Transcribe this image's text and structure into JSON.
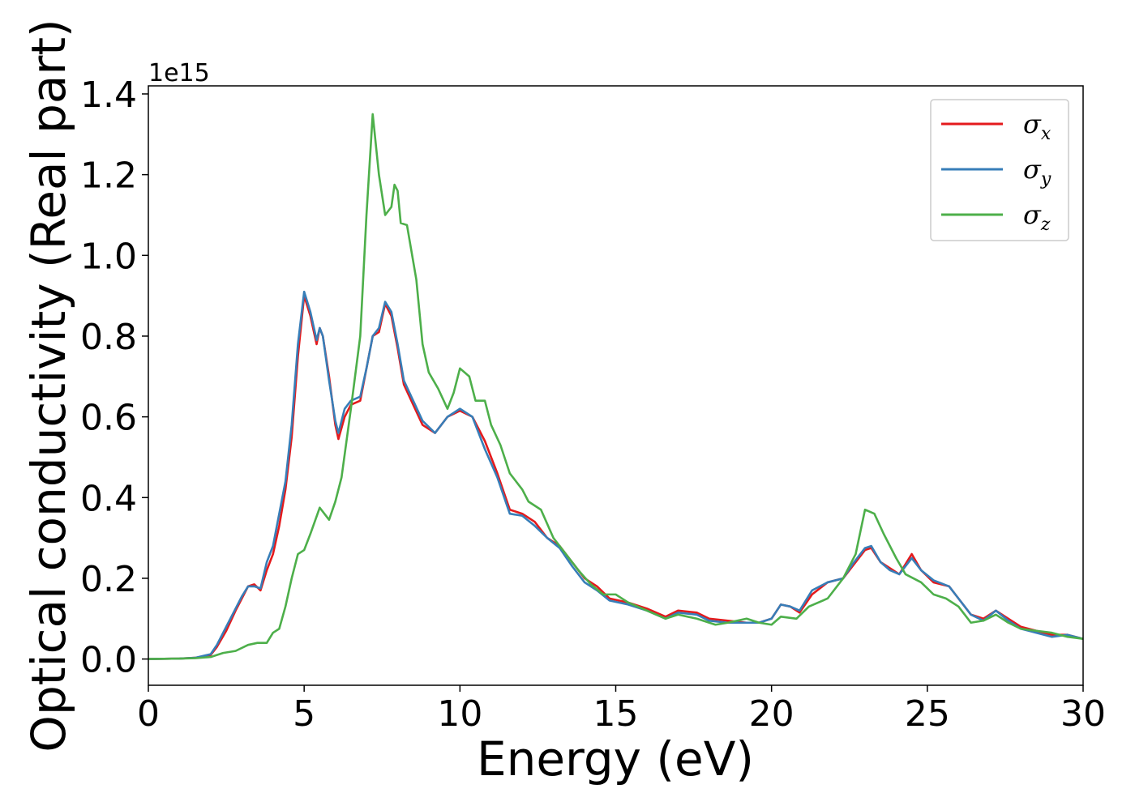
{
  "chart_data": {
    "type": "line",
    "xlabel": "Energy (eV)",
    "ylabel": "Optical conductivity (Real part)",
    "y_offset_label": "1e15",
    "y_scale": 1000000000000000.0,
    "xlim": [
      0,
      30
    ],
    "ylim": [
      -0.065,
      1.42
    ],
    "xticks": [
      0,
      5,
      10,
      15,
      20,
      25,
      30
    ],
    "xtick_labels": [
      "0",
      "5",
      "10",
      "15",
      "20",
      "25",
      "30"
    ],
    "yticks": [
      0.0,
      0.2,
      0.4,
      0.6,
      0.8,
      1.0,
      1.2,
      1.4
    ],
    "ytick_labels": [
      "0.0",
      "0.2",
      "0.4",
      "0.6",
      "0.8",
      "1.0",
      "1.2",
      "1.4"
    ],
    "grid": false,
    "legend_position": "top-right",
    "series": [
      {
        "name": "σ",
        "subscript": "x",
        "color": "#e41a1c",
        "points": [
          [
            0,
            0
          ],
          [
            1,
            0.001
          ],
          [
            1.5,
            0.003
          ],
          [
            2,
            0.01
          ],
          [
            2.2,
            0.03
          ],
          [
            2.5,
            0.07
          ],
          [
            2.8,
            0.12
          ],
          [
            3,
            0.15
          ],
          [
            3.2,
            0.18
          ],
          [
            3.4,
            0.185
          ],
          [
            3.6,
            0.17
          ],
          [
            3.8,
            0.22
          ],
          [
            4,
            0.26
          ],
          [
            4.2,
            0.33
          ],
          [
            4.4,
            0.42
          ],
          [
            4.6,
            0.55
          ],
          [
            4.8,
            0.75
          ],
          [
            5,
            0.9
          ],
          [
            5.2,
            0.85
          ],
          [
            5.4,
            0.78
          ],
          [
            5.5,
            0.82
          ],
          [
            5.6,
            0.8
          ],
          [
            5.8,
            0.7
          ],
          [
            6,
            0.58
          ],
          [
            6.1,
            0.545
          ],
          [
            6.3,
            0.6
          ],
          [
            6.5,
            0.63
          ],
          [
            6.8,
            0.64
          ],
          [
            7,
            0.72
          ],
          [
            7.2,
            0.8
          ],
          [
            7.4,
            0.81
          ],
          [
            7.6,
            0.88
          ],
          [
            7.8,
            0.85
          ],
          [
            8,
            0.77
          ],
          [
            8.2,
            0.68
          ],
          [
            8.5,
            0.63
          ],
          [
            8.8,
            0.58
          ],
          [
            9.2,
            0.56
          ],
          [
            9.6,
            0.6
          ],
          [
            10,
            0.615
          ],
          [
            10.4,
            0.6
          ],
          [
            10.8,
            0.54
          ],
          [
            11.2,
            0.46
          ],
          [
            11.6,
            0.37
          ],
          [
            12,
            0.36
          ],
          [
            12.4,
            0.34
          ],
          [
            12.8,
            0.3
          ],
          [
            13.2,
            0.28
          ],
          [
            13.6,
            0.24
          ],
          [
            14,
            0.2
          ],
          [
            14.4,
            0.18
          ],
          [
            14.8,
            0.15
          ],
          [
            15.4,
            0.14
          ],
          [
            16,
            0.125
          ],
          [
            16.6,
            0.105
          ],
          [
            17,
            0.12
          ],
          [
            17.6,
            0.115
          ],
          [
            18,
            0.1
          ],
          [
            18.6,
            0.095
          ],
          [
            19.2,
            0.09
          ],
          [
            19.6,
            0.09
          ],
          [
            20,
            0.1
          ],
          [
            20.3,
            0.135
          ],
          [
            20.6,
            0.13
          ],
          [
            20.9,
            0.115
          ],
          [
            21.3,
            0.16
          ],
          [
            21.8,
            0.19
          ],
          [
            22.3,
            0.2
          ],
          [
            22.6,
            0.23
          ],
          [
            23,
            0.27
          ],
          [
            23.2,
            0.275
          ],
          [
            23.5,
            0.24
          ],
          [
            23.8,
            0.225
          ],
          [
            24.1,
            0.21
          ],
          [
            24.5,
            0.26
          ],
          [
            24.8,
            0.22
          ],
          [
            25.2,
            0.19
          ],
          [
            25.7,
            0.18
          ],
          [
            26,
            0.15
          ],
          [
            26.4,
            0.11
          ],
          [
            26.8,
            0.1
          ],
          [
            27.2,
            0.12
          ],
          [
            27.6,
            0.1
          ],
          [
            28,
            0.08
          ],
          [
            28.5,
            0.07
          ],
          [
            29,
            0.06
          ],
          [
            29.5,
            0.06
          ],
          [
            30,
            0.05
          ]
        ]
      },
      {
        "name": "σ",
        "subscript": "y",
        "color": "#377eb8",
        "points": [
          [
            0,
            0
          ],
          [
            1,
            0.001
          ],
          [
            1.5,
            0.003
          ],
          [
            2,
            0.012
          ],
          [
            2.2,
            0.035
          ],
          [
            2.5,
            0.08
          ],
          [
            2.8,
            0.125
          ],
          [
            3,
            0.155
          ],
          [
            3.2,
            0.18
          ],
          [
            3.4,
            0.18
          ],
          [
            3.6,
            0.175
          ],
          [
            3.8,
            0.24
          ],
          [
            4,
            0.28
          ],
          [
            4.2,
            0.36
          ],
          [
            4.4,
            0.44
          ],
          [
            4.6,
            0.58
          ],
          [
            4.8,
            0.78
          ],
          [
            5,
            0.91
          ],
          [
            5.2,
            0.86
          ],
          [
            5.4,
            0.79
          ],
          [
            5.5,
            0.82
          ],
          [
            5.6,
            0.8
          ],
          [
            5.8,
            0.69
          ],
          [
            6,
            0.59
          ],
          [
            6.1,
            0.56
          ],
          [
            6.3,
            0.62
          ],
          [
            6.5,
            0.64
          ],
          [
            6.8,
            0.65
          ],
          [
            7,
            0.72
          ],
          [
            7.2,
            0.8
          ],
          [
            7.4,
            0.82
          ],
          [
            7.6,
            0.885
          ],
          [
            7.8,
            0.86
          ],
          [
            8,
            0.78
          ],
          [
            8.2,
            0.69
          ],
          [
            8.5,
            0.64
          ],
          [
            8.8,
            0.59
          ],
          [
            9.2,
            0.56
          ],
          [
            9.6,
            0.6
          ],
          [
            10,
            0.62
          ],
          [
            10.4,
            0.6
          ],
          [
            10.8,
            0.52
          ],
          [
            11.2,
            0.45
          ],
          [
            11.6,
            0.36
          ],
          [
            12,
            0.355
          ],
          [
            12.4,
            0.33
          ],
          [
            12.8,
            0.3
          ],
          [
            13.2,
            0.275
          ],
          [
            13.6,
            0.23
          ],
          [
            14,
            0.19
          ],
          [
            14.4,
            0.17
          ],
          [
            14.8,
            0.145
          ],
          [
            15.4,
            0.135
          ],
          [
            16,
            0.12
          ],
          [
            16.6,
            0.1
          ],
          [
            17,
            0.115
          ],
          [
            17.6,
            0.11
          ],
          [
            18,
            0.095
          ],
          [
            18.6,
            0.09
          ],
          [
            19.2,
            0.09
          ],
          [
            19.6,
            0.09
          ],
          [
            20,
            0.1
          ],
          [
            20.3,
            0.135
          ],
          [
            20.6,
            0.13
          ],
          [
            20.9,
            0.12
          ],
          [
            21.3,
            0.17
          ],
          [
            21.8,
            0.19
          ],
          [
            22.3,
            0.2
          ],
          [
            22.6,
            0.235
          ],
          [
            23,
            0.275
          ],
          [
            23.2,
            0.28
          ],
          [
            23.5,
            0.24
          ],
          [
            23.8,
            0.22
          ],
          [
            24.1,
            0.21
          ],
          [
            24.5,
            0.25
          ],
          [
            24.8,
            0.22
          ],
          [
            25.2,
            0.195
          ],
          [
            25.7,
            0.18
          ],
          [
            26,
            0.15
          ],
          [
            26.4,
            0.11
          ],
          [
            26.8,
            0.095
          ],
          [
            27.2,
            0.12
          ],
          [
            27.6,
            0.095
          ],
          [
            28,
            0.075
          ],
          [
            28.5,
            0.065
          ],
          [
            29,
            0.055
          ],
          [
            29.5,
            0.06
          ],
          [
            30,
            0.05
          ]
        ]
      },
      {
        "name": "σ",
        "subscript": "z",
        "color": "#4daf4a",
        "points": [
          [
            0,
            0
          ],
          [
            1,
            0.001
          ],
          [
            1.5,
            0.002
          ],
          [
            2,
            0.005
          ],
          [
            2.4,
            0.015
          ],
          [
            2.8,
            0.02
          ],
          [
            3.2,
            0.035
          ],
          [
            3.5,
            0.04
          ],
          [
            3.8,
            0.04
          ],
          [
            4,
            0.065
          ],
          [
            4.2,
            0.075
          ],
          [
            4.4,
            0.13
          ],
          [
            4.6,
            0.2
          ],
          [
            4.8,
            0.26
          ],
          [
            5,
            0.27
          ],
          [
            5.2,
            0.31
          ],
          [
            5.5,
            0.375
          ],
          [
            5.8,
            0.345
          ],
          [
            6,
            0.39
          ],
          [
            6.2,
            0.45
          ],
          [
            6.5,
            0.62
          ],
          [
            6.8,
            0.8
          ],
          [
            7,
            1.1
          ],
          [
            7.2,
            1.35
          ],
          [
            7.4,
            1.2
          ],
          [
            7.6,
            1.1
          ],
          [
            7.8,
            1.12
          ],
          [
            7.9,
            1.175
          ],
          [
            8,
            1.16
          ],
          [
            8.1,
            1.08
          ],
          [
            8.3,
            1.075
          ],
          [
            8.6,
            0.94
          ],
          [
            8.8,
            0.78
          ],
          [
            9,
            0.71
          ],
          [
            9.3,
            0.67
          ],
          [
            9.6,
            0.62
          ],
          [
            9.8,
            0.66
          ],
          [
            10,
            0.72
          ],
          [
            10.3,
            0.7
          ],
          [
            10.5,
            0.64
          ],
          [
            10.8,
            0.64
          ],
          [
            11,
            0.58
          ],
          [
            11.3,
            0.53
          ],
          [
            11.6,
            0.46
          ],
          [
            12,
            0.42
          ],
          [
            12.2,
            0.39
          ],
          [
            12.6,
            0.37
          ],
          [
            13,
            0.3
          ],
          [
            13.4,
            0.26
          ],
          [
            13.8,
            0.22
          ],
          [
            14.2,
            0.185
          ],
          [
            14.6,
            0.16
          ],
          [
            15,
            0.16
          ],
          [
            15.4,
            0.14
          ],
          [
            16,
            0.12
          ],
          [
            16.6,
            0.1
          ],
          [
            17,
            0.11
          ],
          [
            17.6,
            0.1
          ],
          [
            18.2,
            0.085
          ],
          [
            18.6,
            0.09
          ],
          [
            19.2,
            0.1
          ],
          [
            19.6,
            0.09
          ],
          [
            20,
            0.085
          ],
          [
            20.3,
            0.105
          ],
          [
            20.8,
            0.1
          ],
          [
            21.2,
            0.13
          ],
          [
            21.8,
            0.15
          ],
          [
            22.3,
            0.2
          ],
          [
            22.7,
            0.26
          ],
          [
            23,
            0.37
          ],
          [
            23.3,
            0.36
          ],
          [
            23.6,
            0.31
          ],
          [
            24,
            0.25
          ],
          [
            24.3,
            0.21
          ],
          [
            24.8,
            0.19
          ],
          [
            25.2,
            0.16
          ],
          [
            25.6,
            0.15
          ],
          [
            26,
            0.13
          ],
          [
            26.4,
            0.09
          ],
          [
            26.8,
            0.095
          ],
          [
            27.2,
            0.11
          ],
          [
            27.6,
            0.09
          ],
          [
            28,
            0.075
          ],
          [
            28.5,
            0.07
          ],
          [
            29,
            0.065
          ],
          [
            29.5,
            0.055
          ],
          [
            30,
            0.05
          ]
        ]
      }
    ]
  }
}
